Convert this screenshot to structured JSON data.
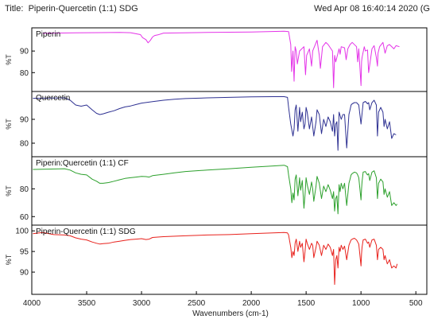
{
  "header": {
    "title_prefix": "Title:",
    "title": "Piperin-Quercetin (1:1) SDG",
    "timestamp": "Wed Apr 08 16:40:14 2020 (G"
  },
  "chart_data": {
    "type": "line",
    "title": "Piperin-Quercetin (1:1) SDG",
    "xlabel": "Wavenumbers (cm-1)",
    "xlim": [
      4000,
      400
    ],
    "x_ticks": [
      4000,
      3500,
      3000,
      2500,
      2000,
      1500,
      1000,
      500
    ],
    "x_reversed": true,
    "grid": false,
    "panels": [
      {
        "name": "Piperin",
        "ylabel": "%T",
        "ylim": [
          72,
          100
        ],
        "y_ticks": [
          80,
          90
        ],
        "color": "#e433e8",
        "x": [
          3900,
          3600,
          3200,
          3100,
          3010,
          2990,
          2960,
          2940,
          2920,
          2900,
          2880,
          2850,
          2800,
          2400,
          2000,
          1700,
          1660,
          1640,
          1632,
          1620,
          1610,
          1600,
          1590,
          1580,
          1560,
          1520,
          1505,
          1495,
          1470,
          1450,
          1440,
          1400,
          1380,
          1370,
          1350,
          1320,
          1300,
          1260,
          1250,
          1240,
          1230,
          1200,
          1190,
          1180,
          1150,
          1135,
          1120,
          1100,
          1080,
          1040,
          1030,
          1020,
          1000,
          995,
          990,
          970,
          960,
          940,
          930,
          900,
          880,
          860,
          850,
          845,
          830,
          800,
          780,
          760,
          740,
          700,
          680,
          650
        ],
        "y": [
          98.2,
          98.4,
          98.6,
          98.5,
          97.6,
          96.2,
          95.3,
          93.8,
          94.9,
          96.5,
          97.2,
          97.5,
          98.3,
          98.6,
          98.8,
          99.2,
          99.0,
          93.0,
          80.5,
          90.0,
          76.0,
          92.0,
          90.0,
          84.0,
          90.0,
          92.0,
          79.0,
          88.0,
          91.0,
          83.0,
          90.0,
          95.0,
          88.0,
          82.0,
          92.0,
          94.0,
          93.0,
          90.0,
          73.0,
          88.0,
          85.0,
          91.0,
          88.5,
          92.0,
          91.5,
          86.0,
          91.0,
          93.0,
          94.0,
          92.0,
          85.0,
          91.0,
          74.0,
          85.0,
          87.0,
          92.0,
          90.0,
          90.5,
          80.0,
          91.0,
          92.5,
          87.0,
          83.0,
          89.0,
          92.0,
          94.0,
          89.0,
          92.5,
          93.0,
          91.0,
          92.5,
          92.0
        ]
      },
      {
        "name": "Quercetin",
        "ylabel": "%T",
        "ylim": [
          75,
          101
        ],
        "y_ticks": [
          80,
          90
        ],
        "color": "#2e3192",
        "x": [
          3990,
          3700,
          3650,
          3600,
          3550,
          3500,
          3450,
          3410,
          3380,
          3350,
          3300,
          3250,
          3200,
          3150,
          3100,
          3050,
          3000,
          2900,
          2800,
          2700,
          2600,
          2400,
          2200,
          2000,
          1800,
          1700,
          1670,
          1660,
          1640,
          1620,
          1610,
          1600,
          1590,
          1575,
          1560,
          1550,
          1535,
          1520,
          1510,
          1500,
          1490,
          1470,
          1450,
          1430,
          1410,
          1400,
          1380,
          1360,
          1340,
          1320,
          1300,
          1280,
          1260,
          1250,
          1240,
          1230,
          1220,
          1210,
          1200,
          1180,
          1165,
          1150,
          1130,
          1110,
          1100,
          1090,
          1080,
          1060,
          1040,
          1030,
          1020,
          1000,
          980,
          960,
          950,
          940,
          930,
          920,
          900,
          880,
          860,
          850,
          840,
          820,
          800,
          790,
          780,
          760,
          740,
          720,
          700,
          680
        ],
        "y": [
          98.8,
          99.0,
          98.0,
          96.0,
          95.5,
          96.0,
          94.0,
          92.5,
          92.0,
          92.3,
          93.0,
          93.6,
          94.5,
          95.2,
          95.6,
          96.2,
          96.8,
          97.4,
          98.0,
          98.4,
          98.7,
          99.0,
          99.2,
          99.4,
          99.5,
          99.5,
          99.2,
          95.0,
          88.0,
          83.0,
          86.0,
          94.0,
          96.0,
          85.0,
          95.0,
          89.0,
          93.0,
          86.0,
          88.0,
          95.0,
          93.0,
          86.0,
          91.0,
          83.0,
          89.0,
          94.0,
          92.0,
          84.0,
          90.0,
          87.0,
          91.0,
          89.0,
          85.0,
          92.0,
          83.0,
          88.0,
          89.0,
          77.0,
          93.0,
          90.0,
          92.0,
          92.0,
          78.0,
          92.0,
          94.0,
          96.0,
          96.5,
          97.0,
          97.0,
          96.5,
          96.0,
          88.0,
          97.0,
          97.5,
          97.0,
          96.5,
          97.0,
          94.0,
          97.0,
          98.0,
          96.0,
          83.0,
          93.0,
          95.0,
          93.0,
          87.0,
          90.0,
          86.0,
          89.0,
          82.0,
          84.0,
          83.5
        ]
      },
      {
        "name": "Piperin:Quercetin (1:1) CF",
        "ylabel": "%T",
        "ylim": [
          55,
          102
        ],
        "y_ticks": [
          60,
          80
        ],
        "color": "#2ca02c",
        "x": [
          3990,
          3700,
          3650,
          3600,
          3550,
          3500,
          3450,
          3410,
          3380,
          3350,
          3300,
          3250,
          3200,
          3150,
          3100,
          3050,
          3000,
          2960,
          2930,
          2900,
          2800,
          2700,
          2600,
          2400,
          2200,
          2000,
          1800,
          1700,
          1670,
          1660,
          1640,
          1630,
          1620,
          1610,
          1600,
          1590,
          1575,
          1560,
          1550,
          1535,
          1520,
          1510,
          1500,
          1490,
          1470,
          1450,
          1440,
          1430,
          1410,
          1400,
          1380,
          1360,
          1340,
          1320,
          1300,
          1280,
          1260,
          1250,
          1240,
          1230,
          1220,
          1210,
          1200,
          1190,
          1180,
          1165,
          1150,
          1130,
          1110,
          1100,
          1090,
          1080,
          1060,
          1040,
          1030,
          1020,
          1000,
          995,
          990,
          980,
          960,
          950,
          940,
          930,
          920,
          900,
          880,
          860,
          850,
          840,
          820,
          800,
          790,
          780,
          760,
          740,
          720,
          700,
          680,
          670
        ],
        "y": [
          94.0,
          94.5,
          93.5,
          91.5,
          90.5,
          90.0,
          87.0,
          85.5,
          84.0,
          84.0,
          84.5,
          85.5,
          86.5,
          87.5,
          88.0,
          88.5,
          89.0,
          88.8,
          88.5,
          89.5,
          90.5,
          91.5,
          92.5,
          93.5,
          94.5,
          95.5,
          96.5,
          97.0,
          96.0,
          90.0,
          80.0,
          70.0,
          77.0,
          72.0,
          87.0,
          90.0,
          75.0,
          88.0,
          79.0,
          86.0,
          66.0,
          76.0,
          88.0,
          83.0,
          76.0,
          85.0,
          80.0,
          71.0,
          82.0,
          89.0,
          84.0,
          73.0,
          82.0,
          78.0,
          83.0,
          79.0,
          73.0,
          78.0,
          64.0,
          73.0,
          75.0,
          62.0,
          83.0,
          78.0,
          84.0,
          80.0,
          84.0,
          68.0,
          84.0,
          87.0,
          90.0,
          91.0,
          92.0,
          91.5,
          90.0,
          88.0,
          72.0,
          80.0,
          85.0,
          92.0,
          92.5,
          91.0,
          90.0,
          91.0,
          86.0,
          92.0,
          93.0,
          88.0,
          73.0,
          84.0,
          87.0,
          85.0,
          76.0,
          80.0,
          74.0,
          78.0,
          68.0,
          70.0,
          68.0,
          69.0
        ]
      },
      {
        "name": "Piperin-Quercetin (1:1) SDG",
        "ylabel": "%T",
        "ylim": [
          85,
          101
        ],
        "y_ticks": [
          90,
          95,
          100
        ],
        "color": "#e8211c",
        "x": [
          3990,
          3900,
          3800,
          3700,
          3650,
          3600,
          3550,
          3500,
          3450,
          3410,
          3380,
          3350,
          3300,
          3250,
          3200,
          3150,
          3100,
          3050,
          3000,
          2960,
          2930,
          2900,
          2800,
          2600,
          2400,
          2200,
          2000,
          1800,
          1700,
          1670,
          1660,
          1640,
          1630,
          1620,
          1610,
          1600,
          1590,
          1575,
          1560,
          1550,
          1535,
          1520,
          1510,
          1500,
          1490,
          1470,
          1450,
          1440,
          1430,
          1410,
          1400,
          1380,
          1360,
          1340,
          1320,
          1300,
          1280,
          1260,
          1250,
          1240,
          1230,
          1220,
          1210,
          1200,
          1190,
          1180,
          1165,
          1150,
          1130,
          1110,
          1100,
          1090,
          1080,
          1060,
          1040,
          1030,
          1020,
          1000,
          995,
          990,
          980,
          960,
          950,
          940,
          930,
          920,
          900,
          880,
          860,
          850,
          840,
          820,
          800,
          790,
          780,
          760,
          740,
          720,
          700,
          680,
          670
        ],
        "y": [
          99.3,
          99.6,
          99.1,
          99.0,
          98.8,
          98.3,
          98.0,
          97.8,
          97.3,
          97.0,
          96.8,
          96.9,
          97.0,
          97.3,
          97.5,
          97.7,
          97.9,
          98.0,
          98.1,
          97.9,
          98.0,
          98.4,
          98.6,
          98.8,
          99.0,
          99.1,
          99.3,
          99.5,
          99.6,
          99.5,
          99.0,
          96.0,
          93.5,
          95.0,
          94.0,
          97.0,
          98.0,
          95.0,
          97.5,
          96.0,
          97.0,
          92.5,
          95.0,
          98.0,
          97.0,
          95.5,
          97.0,
          96.5,
          93.5,
          96.0,
          97.5,
          96.5,
          94.0,
          96.5,
          95.5,
          96.8,
          96.0,
          94.0,
          95.5,
          87.0,
          93.0,
          94.0,
          91.0,
          96.0,
          95.0,
          96.5,
          95.5,
          96.3,
          93.0,
          96.5,
          97.2,
          97.8,
          98.0,
          98.2,
          97.8,
          97.3,
          96.8,
          91.5,
          94.5,
          96.0,
          97.8,
          98.0,
          97.5,
          97.0,
          97.3,
          96.0,
          97.8,
          98.0,
          96.5,
          93.0,
          95.5,
          96.0,
          95.5,
          93.0,
          94.0,
          92.0,
          93.0,
          91.0,
          91.5,
          91.0,
          92.0
        ]
      }
    ]
  }
}
